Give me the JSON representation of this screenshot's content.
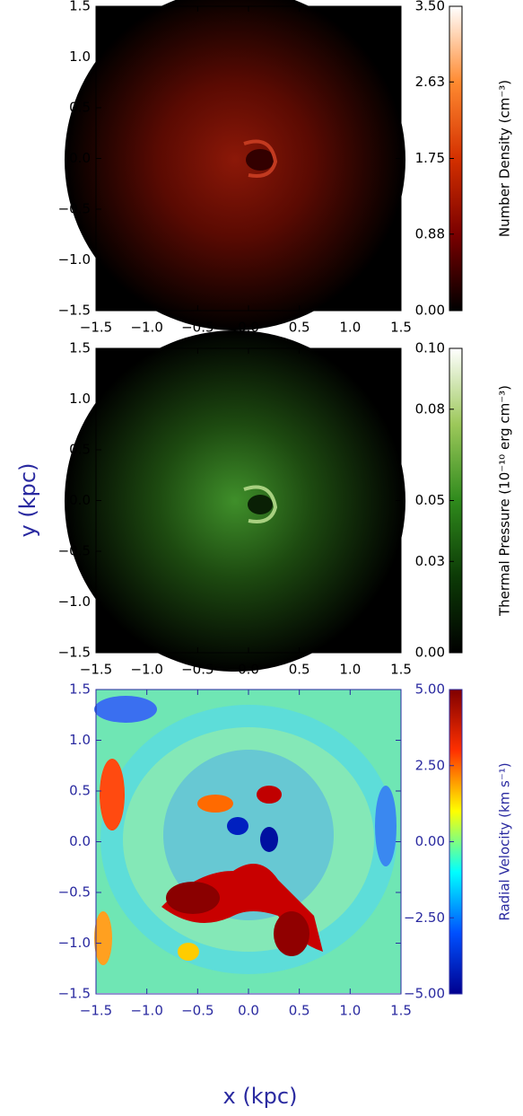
{
  "chart_data": [
    {
      "type": "heatmap",
      "text_color": "#000000",
      "xlim": [
        -1.5,
        1.5
      ],
      "ylim": [
        -1.5,
        1.5
      ],
      "xticks": [
        {
          "value": -1.5,
          "label": "−1.5"
        },
        {
          "value": -1.0,
          "label": "−1.0"
        },
        {
          "value": -0.5,
          "label": "−0.5"
        },
        {
          "value": 0,
          "label": "0.0"
        },
        0.5,
        {
          "value": 1.0,
          "label": "1.0"
        },
        1.5
      ],
      "yticks": [
        {
          "value": -1.5,
          "label": "−1.5"
        },
        {
          "value": -1.0,
          "label": "−1.0"
        },
        {
          "value": -0.5,
          "label": "−0.5"
        },
        {
          "value": 0,
          "label": "0.0"
        },
        0.5,
        {
          "value": 1.0,
          "label": "1.0"
        },
        1.5
      ],
      "colorbar_label": "Number Density (cm⁻³)",
      "clim": [
        0,
        3.5
      ],
      "cticks": [
        {
          "value": 0,
          "label": "0.00"
        },
        0.88,
        1.75,
        2.63,
        {
          "value": 3.5,
          "label": "3.50"
        }
      ],
      "colormap": [
        "#000000",
        "#7a0000",
        "#d43000",
        "#ff8a30",
        "#ffffff"
      ]
    },
    {
      "type": "heatmap",
      "text_color": "#000000",
      "xlim": [
        -1.5,
        1.5
      ],
      "ylim": [
        -1.5,
        1.5
      ],
      "xticks": [
        {
          "value": -1.5,
          "label": "−1.5"
        },
        {
          "value": -1.0,
          "label": "−1.0"
        },
        {
          "value": -0.5,
          "label": "−0.5"
        },
        {
          "value": 0,
          "label": "0.0"
        },
        0.5,
        {
          "value": 1.0,
          "label": "1.0"
        },
        1.5
      ],
      "yticks": [
        {
          "value": -1.5,
          "label": "−1.5"
        },
        {
          "value": -1.0,
          "label": "−1.0"
        },
        {
          "value": -0.5,
          "label": "−0.5"
        },
        {
          "value": 0,
          "label": "0.0"
        },
        0.5,
        {
          "value": 1.0,
          "label": "1.0"
        },
        1.5
      ],
      "ylabel": "y (kpc)",
      "colorbar_label": "Thermal Pressure (10⁻¹⁰ erg cm⁻³)",
      "clim": [
        0,
        0.1
      ],
      "cticks": [
        {
          "value": 0,
          "label": "0.00"
        },
        0.03,
        0.05,
        0.08,
        {
          "value": 0.1,
          "label": "0.10"
        }
      ],
      "colormap": [
        "#000000",
        "#0c3a06",
        "#2f8a1c",
        "#9cc85a",
        "#ffffff"
      ]
    },
    {
      "type": "heatmap",
      "text_color": "#2a2aa0",
      "xlim": [
        -1.5,
        1.5
      ],
      "ylim": [
        -1.5,
        1.5
      ],
      "xticks": [
        {
          "value": -1.5,
          "label": "−1.5"
        },
        {
          "value": -1.0,
          "label": "−1.0"
        },
        {
          "value": -0.5,
          "label": "−0.5"
        },
        {
          "value": 0,
          "label": "0.0"
        },
        0.5,
        {
          "value": 1.0,
          "label": "1.0"
        },
        1.5
      ],
      "yticks": [
        {
          "value": -1.5,
          "label": "−1.5"
        },
        {
          "value": -1.0,
          "label": "−1.0"
        },
        {
          "value": -0.5,
          "label": "−0.5"
        },
        {
          "value": 0,
          "label": "0.0"
        },
        0.5,
        {
          "value": 1.0,
          "label": "1.0"
        },
        1.5
      ],
      "xlabel": "x (kpc)",
      "colorbar_label": "Radial Velocity (km s⁻¹)",
      "clim": [
        -5,
        5
      ],
      "cticks": [
        {
          "value": -5,
          "label": "−5.00"
        },
        {
          "value": -2.5,
          "label": "−2.50"
        },
        {
          "value": 0,
          "label": "0.00"
        },
        {
          "value": 2.5,
          "label": "2.50"
        },
        {
          "value": 5,
          "label": "5.00"
        }
      ],
      "colormap": [
        "#00008f",
        "#0050ff",
        "#00ffff",
        "#ffff00",
        "#ff3000",
        "#800000"
      ]
    }
  ]
}
